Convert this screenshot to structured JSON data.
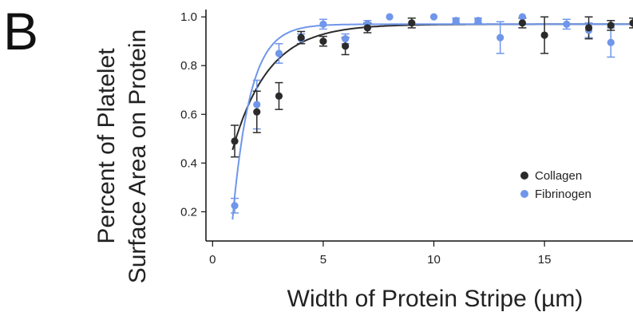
{
  "panel_label": "B",
  "colors": {
    "collagen": "#2b2b2b",
    "fibrinogen": "#6f96ea",
    "axis": "#111111"
  },
  "chart_data": {
    "type": "scatter",
    "title": "",
    "xlabel": "Width of Protein Stripe (µm)",
    "ylabel_lines": [
      "Percent of Platelet",
      "Surface Area on Protein"
    ],
    "xlim": [
      -0.3,
      19
    ],
    "ylim": [
      0.08,
      1.03
    ],
    "x_ticks": [
      0,
      5,
      10,
      15
    ],
    "x_tick_labels": [
      "0",
      "5",
      "10",
      "15"
    ],
    "y_ticks": [
      0.2,
      0.4,
      0.6,
      0.8,
      1.0
    ],
    "y_tick_labels": [
      "0.2",
      "0.4",
      "0.6",
      "0.8",
      "1.0"
    ],
    "grid": false,
    "legend_position": "right",
    "series": [
      {
        "name": "Collagen",
        "color": "#2b2b2b",
        "x": [
          1,
          2,
          3,
          4,
          5,
          6,
          7,
          9,
          14,
          15,
          17,
          18,
          19
        ],
        "y": [
          0.49,
          0.61,
          0.675,
          0.915,
          0.9,
          0.88,
          0.955,
          0.975,
          0.975,
          0.925,
          0.955,
          0.965,
          0.975
        ],
        "yerr": [
          0.065,
          0.085,
          0.055,
          0.025,
          0.02,
          0.035,
          0.02,
          0.02,
          0.02,
          0.075,
          0.045,
          0.02,
          0.02
        ],
        "fit": {
          "model": "1 - a*exp(-x/t)",
          "a": 0.9,
          "t": 1.62,
          "plateau": 0.97
        }
      },
      {
        "name": "Fibrinogen",
        "color": "#6f96ea",
        "x": [
          1,
          2,
          3,
          4,
          5,
          6,
          7,
          8,
          10,
          11,
          12,
          13,
          14,
          16,
          17,
          18
        ],
        "y": [
          0.225,
          0.64,
          0.85,
          0.91,
          0.97,
          0.91,
          0.97,
          1.0,
          1.0,
          0.985,
          0.985,
          0.915,
          1.0,
          0.97,
          0.945,
          0.895
        ],
        "yerr": [
          0.03,
          0.1,
          0.04,
          0.02,
          0.02,
          0.02,
          0.015,
          0.0,
          0.0,
          0.01,
          0.01,
          0.065,
          0.0,
          0.02,
          0.03,
          0.06
        ],
        "fit": {
          "model": "1 - a*exp(-x/t)",
          "a": 2.47,
          "t": 0.8,
          "plateau": 0.97
        }
      }
    ]
  }
}
